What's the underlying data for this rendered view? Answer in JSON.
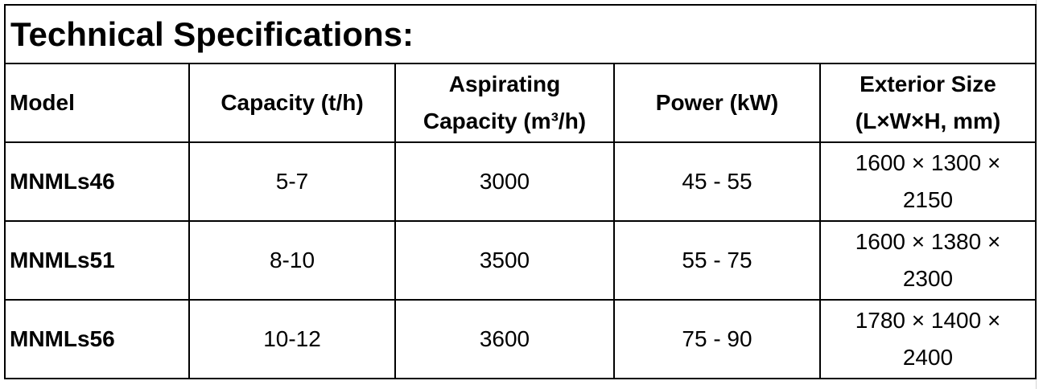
{
  "title": "Technical Specifications:",
  "table": {
    "header": [
      "Model",
      "Capacity (t/h)",
      "Aspirating Capacity (m³/h)",
      "Power (kW)",
      "Exterior Size (L×W×H, mm)"
    ],
    "rows": [
      [
        "MNMLs46",
        "5-7",
        "3000",
        "45 - 55",
        "1600 × 1300 × 2150"
      ],
      [
        "MNMLs51",
        "8-10",
        "3500",
        "55 - 75",
        "1600 × 1380 × 2300"
      ],
      [
        "MNMLs56",
        "10-12",
        "3600",
        "75 - 90",
        "1780 × 1400 × 2400"
      ]
    ]
  }
}
